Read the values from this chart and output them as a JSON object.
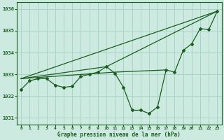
{
  "background_color": "#cceae0",
  "grid_color": "#aad4c8",
  "line_color": "#1a5e20",
  "text_color": "#1a5e20",
  "xlabel": "Graphe pression niveau de la mer (hPa)",
  "ylim": [
    1030.7,
    1036.3
  ],
  "xlim": [
    -0.5,
    23.5
  ],
  "yticks": [
    1031,
    1032,
    1033,
    1034,
    1035,
    1036
  ],
  "xticks": [
    0,
    1,
    2,
    3,
    4,
    5,
    6,
    7,
    8,
    9,
    10,
    11,
    12,
    13,
    14,
    15,
    16,
    17,
    18,
    19,
    20,
    21,
    22,
    23
  ],
  "series_main_x": [
    0,
    1,
    2,
    3,
    4,
    5,
    6,
    7,
    8,
    9,
    10,
    11,
    12,
    13,
    14,
    15,
    16,
    17,
    18,
    19,
    20,
    21,
    22,
    23
  ],
  "series_main_y": [
    1032.3,
    1032.7,
    1032.8,
    1032.8,
    1032.5,
    1032.4,
    1032.45,
    1032.9,
    1033.0,
    1033.1,
    1033.35,
    1033.05,
    1032.4,
    1031.35,
    1031.35,
    1031.2,
    1031.5,
    1033.2,
    1033.1,
    1034.1,
    1034.4,
    1035.1,
    1035.05,
    1035.9
  ],
  "line2_x": [
    0,
    23
  ],
  "line2_y": [
    1032.8,
    1035.9
  ],
  "line3_x": [
    0,
    10,
    23
  ],
  "line3_y": [
    1032.8,
    1033.35,
    1035.9
  ],
  "line4_x": [
    0,
    11,
    17
  ],
  "line4_y": [
    1032.8,
    1033.1,
    1033.2
  ]
}
